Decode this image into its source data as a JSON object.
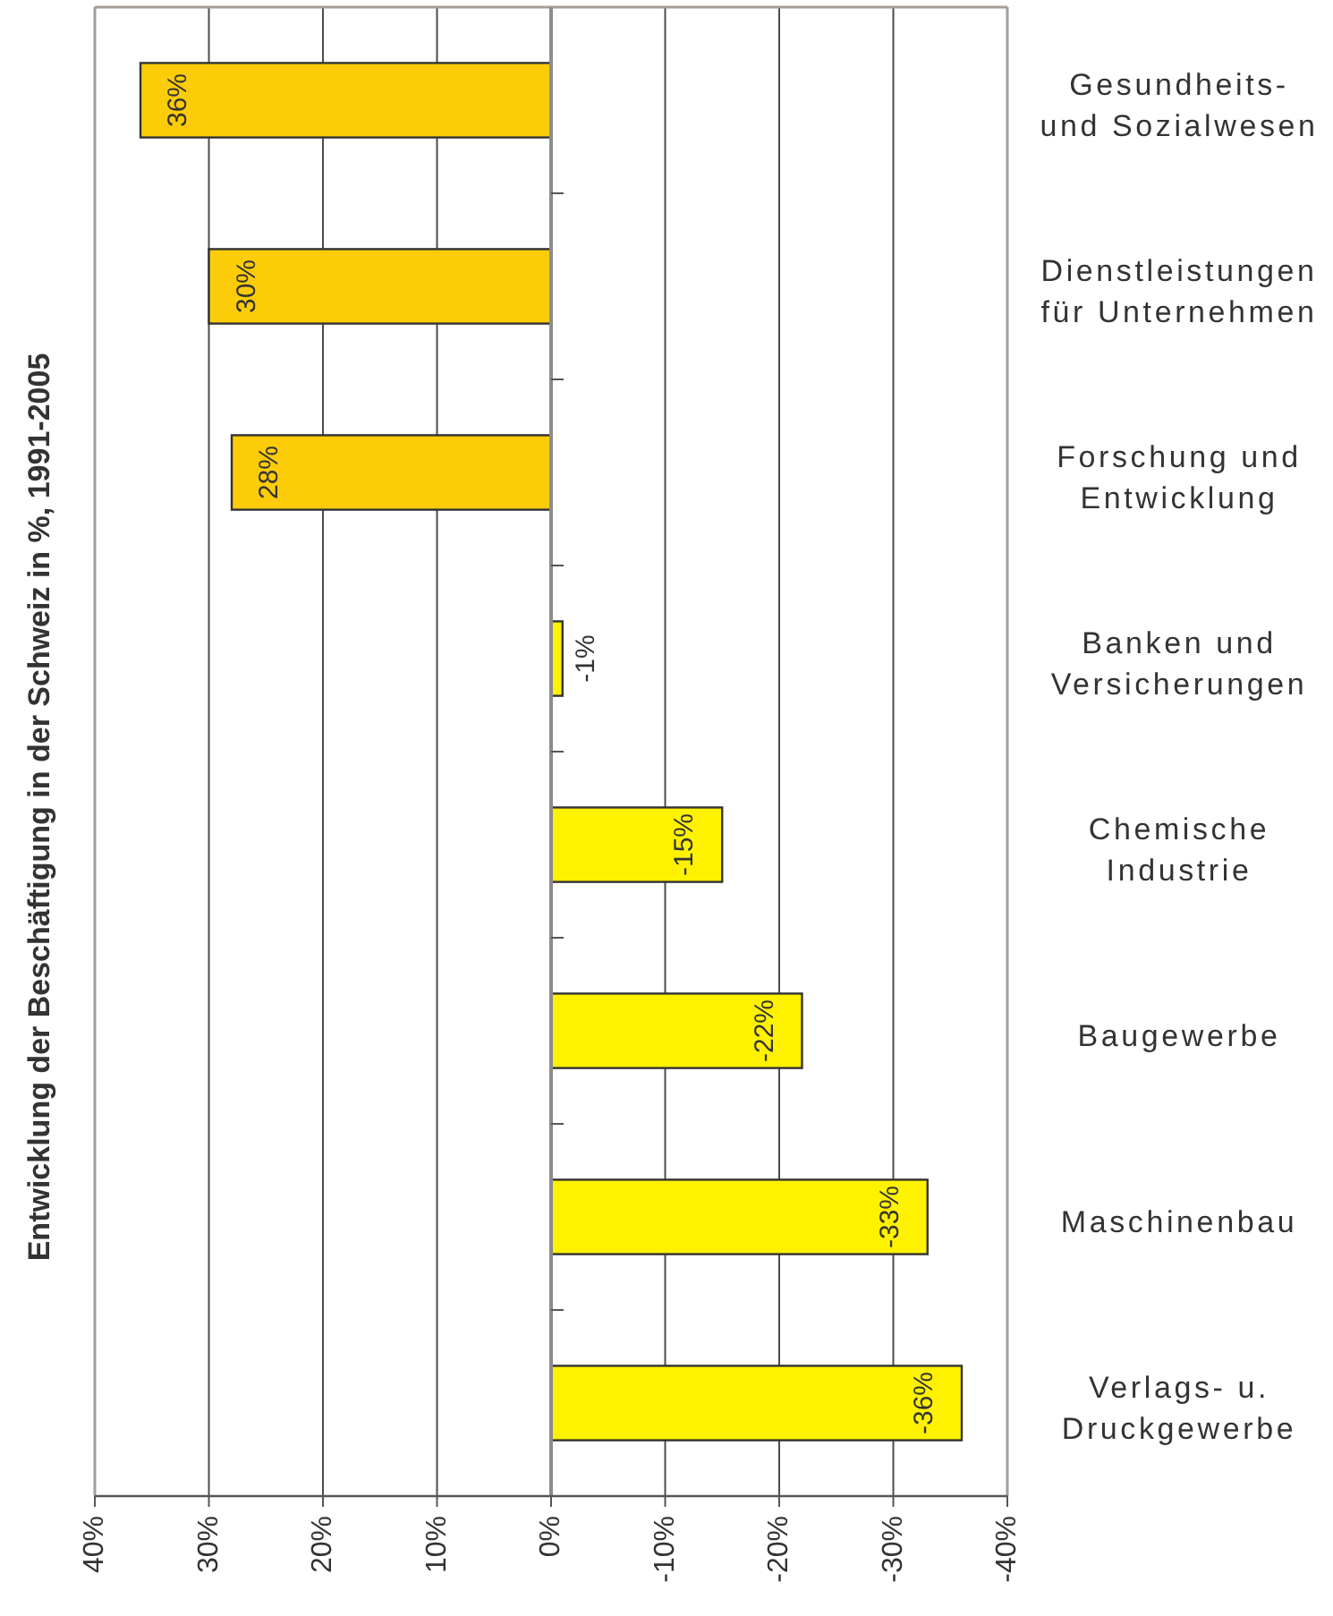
{
  "chart_data": {
    "type": "bar",
    "orientation": "horizontal",
    "ylabel": "Entwicklung der Beschäftigung in der Schweiz in %, 1991-2005",
    "categories": [
      "Gesundheits-\nund Sozialwesen",
      "Dienstleistungen\nfür Unternehmen",
      "Forschung und\nEntwicklung",
      "Banken und\nVersicherungen",
      "Chemische\nIndustrie",
      "Baugewerbe",
      "Maschinenbau",
      "Verlags- u.\nDruckgewerbe"
    ],
    "values": [
      36,
      30,
      28,
      -1,
      -15,
      -22,
      -33,
      -36
    ],
    "colors": [
      "#fccc08",
      "#fccc08",
      "#fccc08",
      "#fff200",
      "#fff200",
      "#fff200",
      "#fff200",
      "#fff200"
    ],
    "value_labels": [
      "36%",
      "30%",
      "28%",
      "-1%",
      "-15%",
      "-22%",
      "-33%",
      "-36%"
    ],
    "xlim": [
      40,
      -40
    ],
    "xticks": [
      {
        "value": 40,
        "label": "40%"
      },
      {
        "value": 30,
        "label": "30%"
      },
      {
        "value": 20,
        "label": "20%"
      },
      {
        "value": 10,
        "label": "10%"
      },
      {
        "value": 0,
        "label": "0%"
      },
      {
        "value": -10,
        "label": "-10%"
      },
      {
        "value": -20,
        "label": "-20%"
      },
      {
        "value": -30,
        "label": "-30%"
      },
      {
        "value": -40,
        "label": "-40%"
      }
    ],
    "grid": "x"
  }
}
